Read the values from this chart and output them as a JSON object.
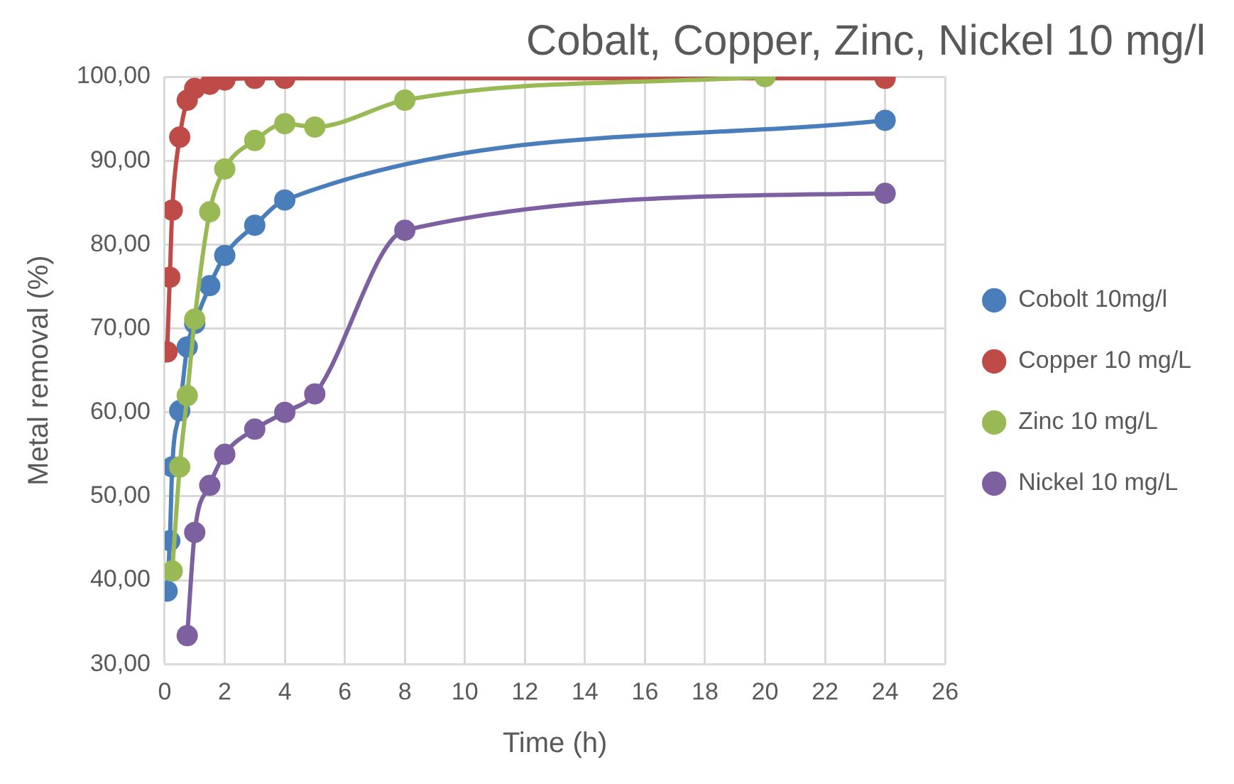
{
  "chart_data": {
    "type": "line",
    "title": "Cobalt, Copper, Zinc, Nickel 10 mg/l",
    "xlabel": "Time (h)",
    "ylabel": "Metal removal (%)",
    "xlim": [
      0,
      26
    ],
    "xticks": [
      0,
      2,
      4,
      6,
      8,
      10,
      12,
      14,
      16,
      18,
      20,
      22,
      24,
      26
    ],
    "ylim": [
      30,
      100
    ],
    "yticks": [
      {
        "value": 30,
        "label": "30,00"
      },
      {
        "value": 40,
        "label": "40,00"
      },
      {
        "value": 50,
        "label": "50,00"
      },
      {
        "value": 60,
        "label": "60,00"
      },
      {
        "value": 70,
        "label": "70,00"
      },
      {
        "value": 80,
        "label": "80,00"
      },
      {
        "value": 90,
        "label": "90,00"
      },
      {
        "value": 100,
        "label": "100,00"
      }
    ],
    "grid": true,
    "legend": "right",
    "marker": "circle",
    "line_style": "solid",
    "series": [
      {
        "name": "Cobolt 10mg/l",
        "color": "#4a7ebb",
        "x": [
          0.08,
          0.17,
          0.25,
          0.5,
          0.75,
          1,
          1.5,
          2,
          3,
          4,
          24
        ],
        "values": [
          38.7,
          44.7,
          53.5,
          60.2,
          67.8,
          70.6,
          75.1,
          78.7,
          82.3,
          85.3,
          94.8
        ]
      },
      {
        "name": "Copper 10 mg/L",
        "color": "#be4b48",
        "x": [
          0.08,
          0.17,
          0.25,
          0.5,
          0.75,
          1,
          1.5,
          2,
          3,
          4,
          24
        ],
        "values": [
          67.2,
          76.1,
          84.1,
          92.8,
          97.2,
          98.6,
          99.1,
          99.6,
          99.8,
          99.8,
          99.8
        ]
      },
      {
        "name": "Zinc 10 mg/L",
        "color": "#98b954",
        "x": [
          0.25,
          0.5,
          0.75,
          1,
          1.5,
          2,
          3,
          4,
          5,
          8,
          20
        ],
        "values": [
          41.1,
          53.5,
          62.0,
          71.1,
          83.9,
          89.0,
          92.4,
          94.4,
          94.0,
          97.2,
          100
        ]
      },
      {
        "name": "Nickel 10 mg/L",
        "color": "#7d60a0",
        "x": [
          0.75,
          1,
          1.5,
          2,
          3,
          4,
          5,
          8,
          24
        ],
        "values": [
          33.4,
          45.7,
          51.3,
          55.0,
          58.0,
          60.0,
          62.2,
          81.7,
          86.1
        ]
      }
    ]
  }
}
